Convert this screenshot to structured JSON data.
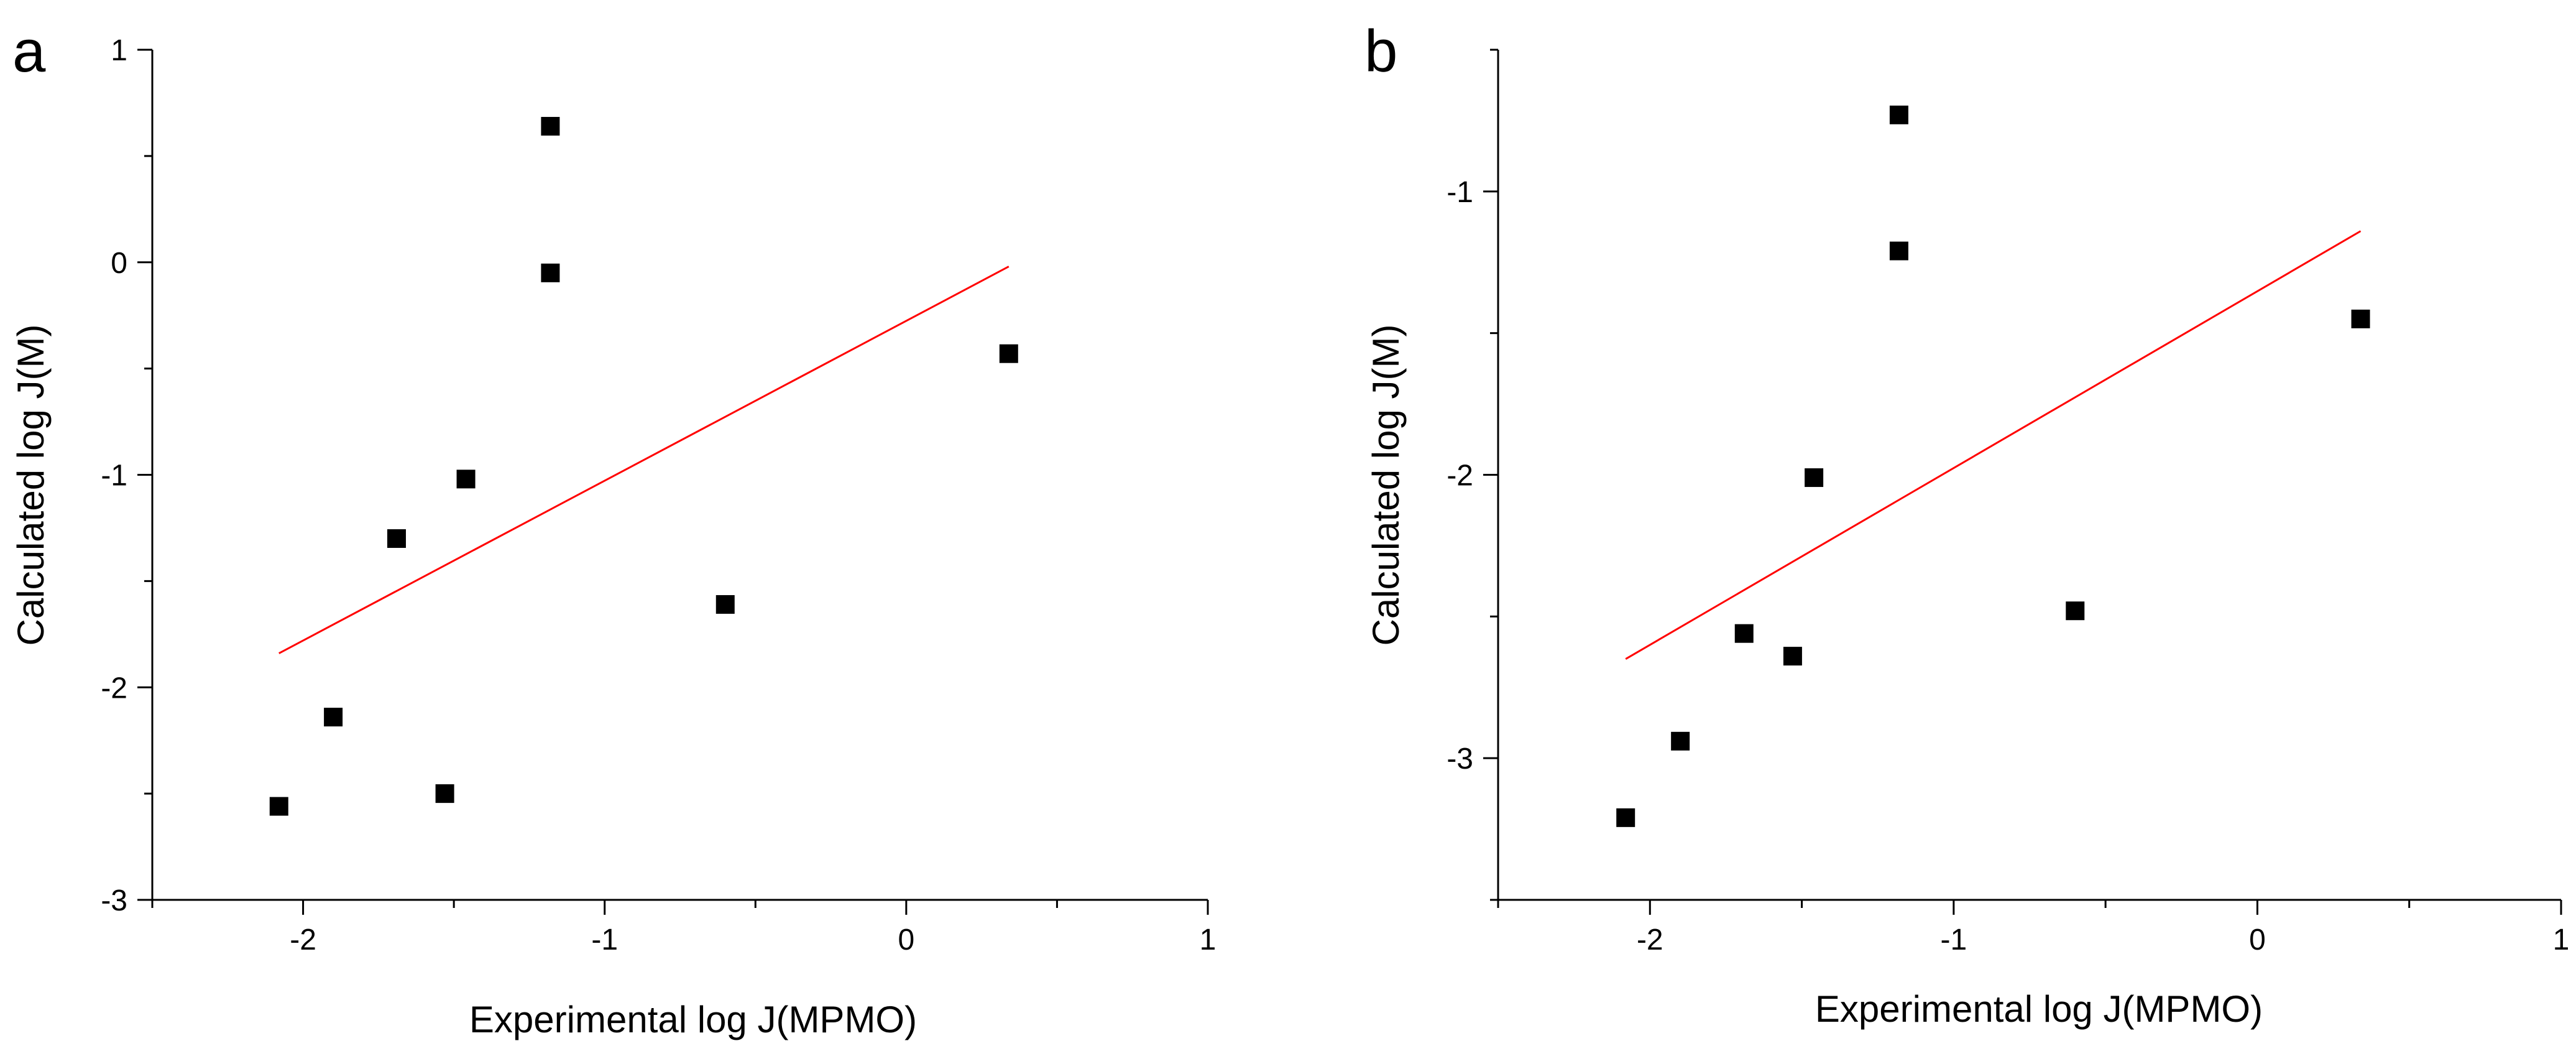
{
  "colors": {
    "axis": "#000000",
    "marker": "#000000",
    "fit_line": "#ff0000",
    "background": "#ffffff"
  },
  "chart_data": [
    {
      "panel": "a",
      "type": "scatter",
      "xlabel": "Experimental log J(MPMO)",
      "ylabel": "Calculated log J(M)",
      "xlim": [
        -2.5,
        1
      ],
      "ylim": [
        -3,
        1
      ],
      "xticks": [
        -2,
        -1,
        0,
        1
      ],
      "xtick_labels": [
        "-2",
        "-1",
        "0",
        "1"
      ],
      "yticks": [
        -3,
        -2,
        -1,
        0,
        1
      ],
      "ytick_labels": [
        "-3",
        "-2",
        "-1",
        "0",
        "1"
      ],
      "points": [
        {
          "x": -2.08,
          "y": -2.56
        },
        {
          "x": -1.9,
          "y": -2.14
        },
        {
          "x": -1.69,
          "y": -1.3
        },
        {
          "x": -1.53,
          "y": -2.5
        },
        {
          "x": -1.46,
          "y": -1.02
        },
        {
          "x": -1.18,
          "y": 0.64
        },
        {
          "x": -1.18,
          "y": -0.05
        },
        {
          "x": -0.6,
          "y": -1.61
        },
        {
          "x": 0.34,
          "y": -0.43
        }
      ],
      "fit_line": {
        "x1": -2.08,
        "y1": -1.84,
        "x2": 0.34,
        "y2": -0.02
      }
    },
    {
      "panel": "b",
      "type": "scatter",
      "xlabel": "Experimental log J(MPMO)",
      "ylabel": "Calculated log J(M)",
      "xlim": [
        -2.5,
        1
      ],
      "ylim": [
        -3.5,
        -0.5
      ],
      "xticks": [
        -2,
        -1,
        0,
        1
      ],
      "xtick_labels": [
        "-2",
        "-1",
        "0",
        "1"
      ],
      "yticks": [
        -3,
        -2,
        -1
      ],
      "ytick_labels": [
        "-3",
        "-2",
        "-1"
      ],
      "points": [
        {
          "x": -2.08,
          "y": -3.21
        },
        {
          "x": -1.9,
          "y": -2.94
        },
        {
          "x": -1.69,
          "y": -2.56
        },
        {
          "x": -1.53,
          "y": -2.64
        },
        {
          "x": -1.46,
          "y": -2.01
        },
        {
          "x": -1.18,
          "y": -0.73
        },
        {
          "x": -1.18,
          "y": -1.21
        },
        {
          "x": -0.6,
          "y": -2.48
        },
        {
          "x": 0.34,
          "y": -1.45
        }
      ],
      "fit_line": {
        "x1": -2.08,
        "y1": -2.65,
        "x2": 0.34,
        "y2": -1.14
      }
    }
  ]
}
